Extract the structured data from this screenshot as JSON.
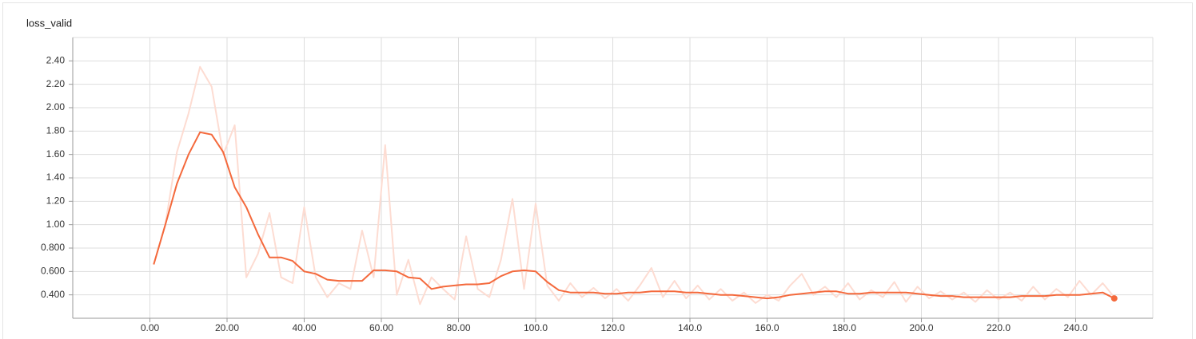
{
  "chart_data": {
    "type": "line",
    "title": "loss_valid",
    "x": [
      1,
      4,
      7,
      10,
      13,
      16,
      19,
      22,
      25,
      28,
      31,
      34,
      37,
      40,
      43,
      46,
      49,
      52,
      55,
      58,
      61,
      64,
      67,
      70,
      73,
      76,
      79,
      82,
      85,
      88,
      91,
      94,
      97,
      100,
      103,
      106,
      109,
      112,
      115,
      118,
      121,
      124,
      127,
      130,
      133,
      136,
      139,
      142,
      145,
      148,
      151,
      154,
      157,
      160,
      163,
      166,
      169,
      172,
      175,
      178,
      181,
      184,
      187,
      190,
      193,
      196,
      199,
      202,
      205,
      208,
      211,
      214,
      217,
      220,
      223,
      226,
      229,
      232,
      235,
      238,
      241,
      244,
      247,
      250
    ],
    "series": [
      {
        "color": "#fddcd2",
        "values": [
          0.66,
          1.0,
          1.62,
          1.95,
          2.35,
          2.18,
          1.6,
          1.85,
          0.55,
          0.75,
          1.1,
          0.55,
          0.5,
          1.15,
          0.55,
          0.38,
          0.5,
          0.45,
          0.95,
          0.55,
          1.68,
          0.4,
          0.7,
          0.32,
          0.55,
          0.45,
          0.36,
          0.9,
          0.45,
          0.38,
          0.7,
          1.22,
          0.45,
          1.18,
          0.48,
          0.35,
          0.5,
          0.38,
          0.46,
          0.37,
          0.45,
          0.35,
          0.48,
          0.63,
          0.38,
          0.52,
          0.37,
          0.48,
          0.36,
          0.45,
          0.35,
          0.42,
          0.33,
          0.4,
          0.35,
          0.48,
          0.58,
          0.4,
          0.47,
          0.38,
          0.5,
          0.36,
          0.44,
          0.38,
          0.51,
          0.34,
          0.47,
          0.37,
          0.43,
          0.36,
          0.42,
          0.34,
          0.44,
          0.36,
          0.42,
          0.35,
          0.47,
          0.36,
          0.45,
          0.38,
          0.52,
          0.4,
          0.5,
          0.38
        ]
      },
      {
        "color": "#f4693c",
        "values": [
          0.66,
          1.0,
          1.35,
          1.6,
          1.79,
          1.77,
          1.62,
          1.32,
          1.15,
          0.92,
          0.72,
          0.72,
          0.69,
          0.6,
          0.58,
          0.53,
          0.52,
          0.52,
          0.52,
          0.61,
          0.61,
          0.6,
          0.55,
          0.54,
          0.45,
          0.47,
          0.48,
          0.49,
          0.49,
          0.5,
          0.56,
          0.6,
          0.61,
          0.6,
          0.51,
          0.44,
          0.42,
          0.42,
          0.42,
          0.41,
          0.41,
          0.42,
          0.42,
          0.43,
          0.43,
          0.43,
          0.42,
          0.42,
          0.41,
          0.4,
          0.4,
          0.39,
          0.38,
          0.37,
          0.38,
          0.4,
          0.41,
          0.42,
          0.43,
          0.43,
          0.41,
          0.41,
          0.42,
          0.42,
          0.42,
          0.42,
          0.41,
          0.4,
          0.39,
          0.39,
          0.38,
          0.38,
          0.38,
          0.38,
          0.38,
          0.39,
          0.39,
          0.39,
          0.4,
          0.4,
          0.4,
          0.41,
          0.42,
          0.37
        ]
      }
    ],
    "xlim": [
      -20,
      260
    ],
    "xticks": [
      {
        "value": 0,
        "label": "0.00"
      },
      {
        "value": 20,
        "label": "20.00"
      },
      {
        "value": 40,
        "label": "40.00"
      },
      {
        "value": 60,
        "label": "60.00"
      },
      {
        "value": 80,
        "label": "80.00"
      },
      {
        "value": 100,
        "label": "100.0"
      },
      {
        "value": 120,
        "label": "120.0"
      },
      {
        "value": 140,
        "label": "140.0"
      },
      {
        "value": 160,
        "label": "160.0"
      },
      {
        "value": 180,
        "label": "180.0"
      },
      {
        "value": 200,
        "label": "200.0"
      },
      {
        "value": 220,
        "label": "220.0"
      },
      {
        "value": 240,
        "label": "240.0"
      }
    ],
    "ylim": [
      0.2,
      2.6
    ],
    "yticks": [
      {
        "value": 0.4,
        "label": "0.400"
      },
      {
        "value": 0.6,
        "label": "0.600"
      },
      {
        "value": 0.8,
        "label": "0.800"
      },
      {
        "value": 1.0,
        "label": "1.00"
      },
      {
        "value": 1.2,
        "label": "1.20"
      },
      {
        "value": 1.4,
        "label": "1.40"
      },
      {
        "value": 1.6,
        "label": "1.60"
      },
      {
        "value": 1.8,
        "label": "1.80"
      },
      {
        "value": 2.0,
        "label": "2.00"
      },
      {
        "value": 2.2,
        "label": "2.20"
      },
      {
        "value": 2.4,
        "label": "2.40"
      }
    ],
    "grid": true
  }
}
